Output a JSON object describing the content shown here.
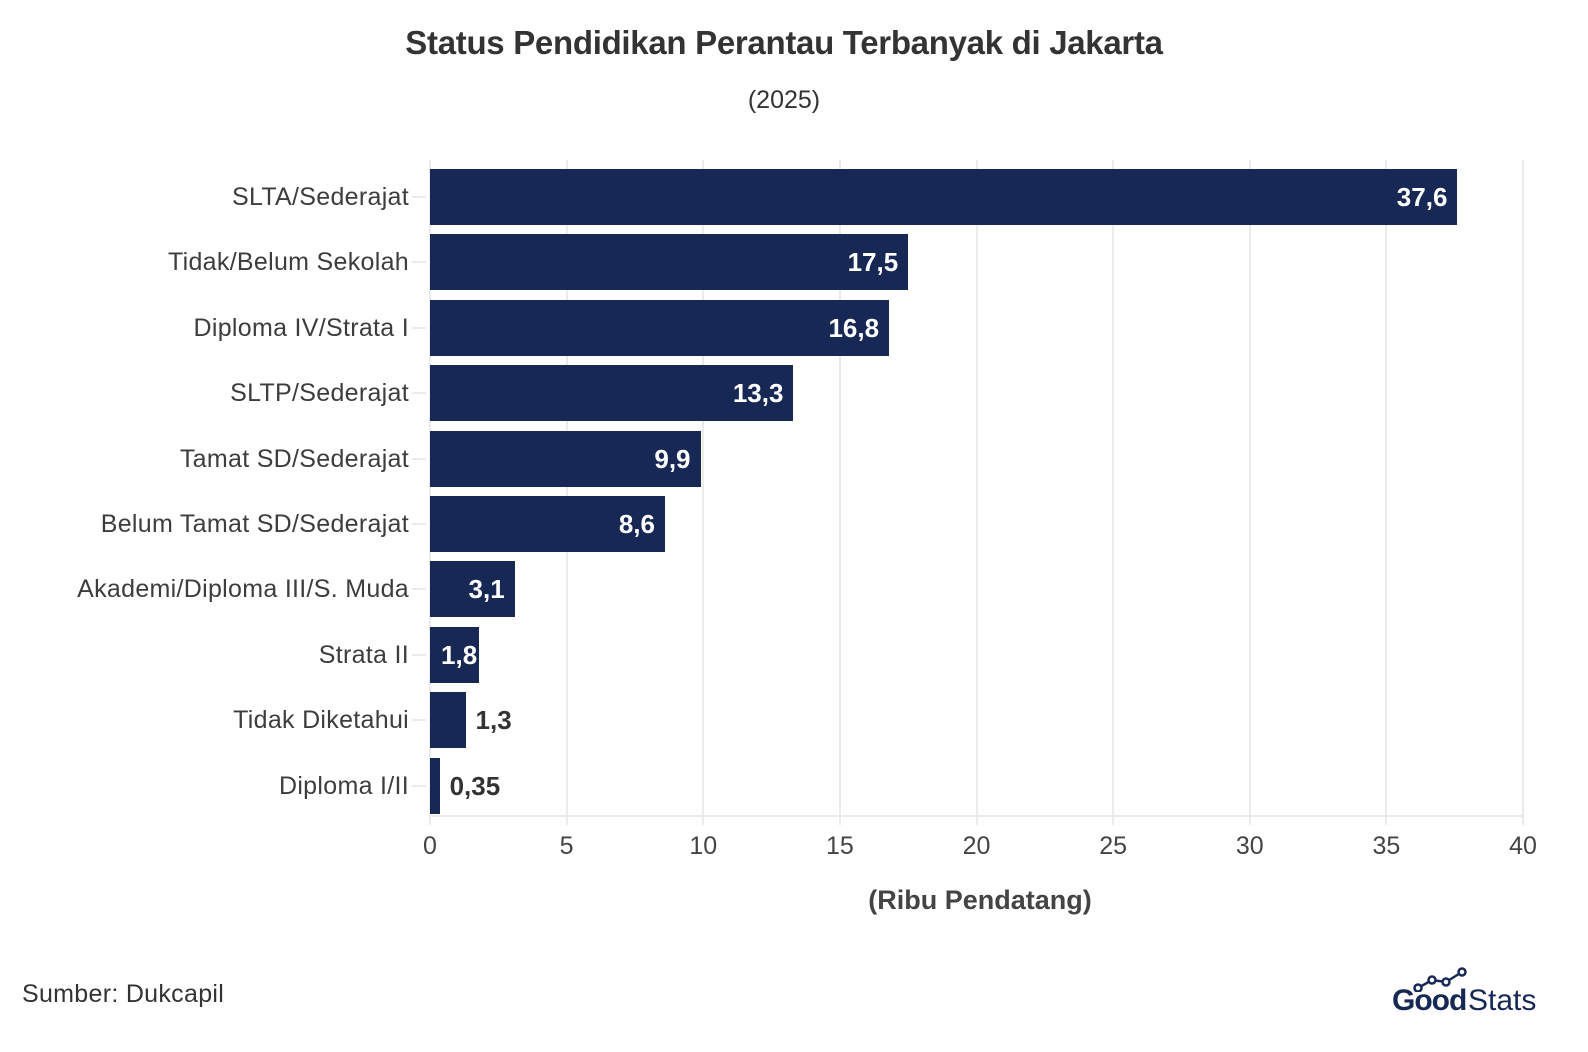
{
  "header": {
    "title": "Status Pendidikan Perantau Terbanyak di Jakarta",
    "subtitle": "(2025)"
  },
  "footer": {
    "source": "Sumber: Dukcapil",
    "logo_bold": "Good",
    "logo_light": "Stats"
  },
  "colors": {
    "bar": "#172854",
    "grid": "#ebebeb",
    "text": "#333333"
  },
  "chart_data": {
    "type": "bar",
    "orientation": "horizontal",
    "title": "Status Pendidikan Perantau Terbanyak di Jakarta",
    "subtitle": "(2025)",
    "xlabel": "(Ribu Pendatang)",
    "ylabel": "",
    "xlim": [
      0,
      40
    ],
    "xticks": [
      0,
      5,
      10,
      15,
      20,
      25,
      30,
      35,
      40
    ],
    "xtick_labels": [
      "0",
      "5",
      "10",
      "15",
      "20",
      "25",
      "30",
      "35",
      "40"
    ],
    "grid": true,
    "legend": null,
    "categories": [
      "SLTA/Sederajat",
      "Tidak/Belum Sekolah",
      "Diploma IV/Strata I",
      "SLTP/Sederajat",
      "Tamat SD/Sederajat",
      "Belum Tamat SD/Sederajat",
      "Akademi/Diploma III/S. Muda",
      "Strata II",
      "Tidak Diketahui",
      "Diploma I/II"
    ],
    "values": [
      37.6,
      17.5,
      16.8,
      13.3,
      9.9,
      8.6,
      3.1,
      1.8,
      1.3,
      0.35
    ],
    "value_labels": [
      "37,6",
      "17,5",
      "16,8",
      "13,3",
      "9,9",
      "8,6",
      "3,1",
      "1,8",
      "1,3",
      "0,35"
    ],
    "source": "Sumber: Dukcapil"
  }
}
